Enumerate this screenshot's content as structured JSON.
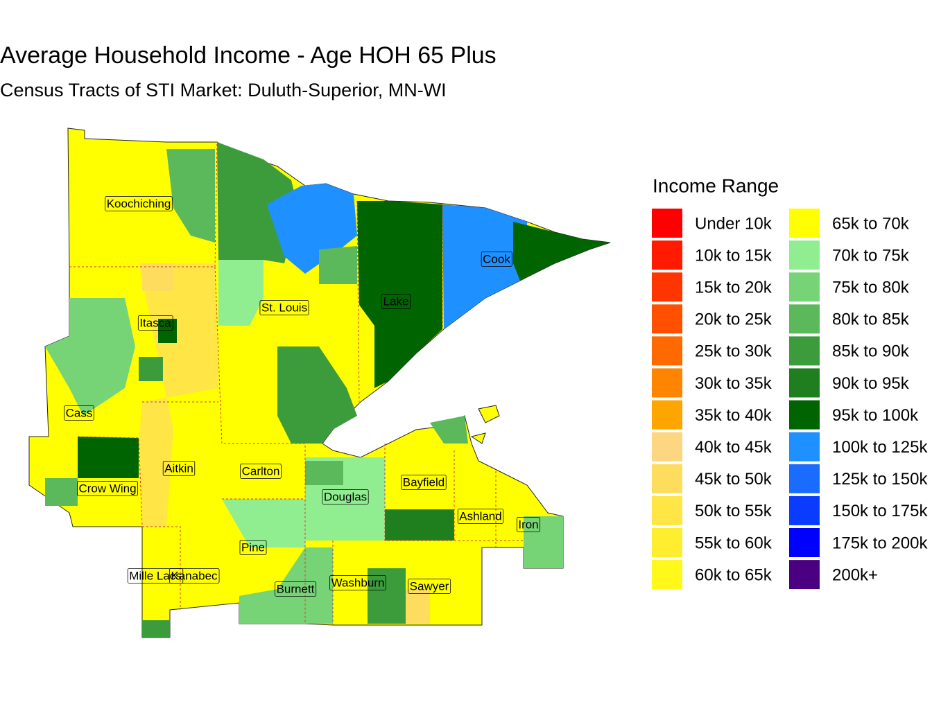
{
  "title": "Average Household Income - Age HOH 65 Plus",
  "subtitle": "Census Tracts of STI Market: Duluth-Superior, MN-WI",
  "legend": {
    "title": "Income Range",
    "items": [
      {
        "label": "Under 10k",
        "color": "#ff0000"
      },
      {
        "label": "10k to 15k",
        "color": "#ff1a00"
      },
      {
        "label": "15k to 20k",
        "color": "#ff3500"
      },
      {
        "label": "20k to 25k",
        "color": "#ff5000"
      },
      {
        "label": "25k to 30k",
        "color": "#ff6a00"
      },
      {
        "label": "30k to 35k",
        "color": "#ff8500"
      },
      {
        "label": "35k to 40k",
        "color": "#ffa500"
      },
      {
        "label": "40k to 45k",
        "color": "#fdd681"
      },
      {
        "label": "45k to 50k",
        "color": "#fedc5e"
      },
      {
        "label": "50k to 55k",
        "color": "#ffe545"
      },
      {
        "label": "55k to 60k",
        "color": "#ffee30"
      },
      {
        "label": "60k to 65k",
        "color": "#fff81a"
      },
      {
        "label": "65k to 70k",
        "color": "#ffff00"
      },
      {
        "label": "70k to 75k",
        "color": "#90ee90"
      },
      {
        "label": "75k to 80k",
        "color": "#76d476"
      },
      {
        "label": "80k to 85k",
        "color": "#5bb95b"
      },
      {
        "label": "85k to 90k",
        "color": "#3c9c3c"
      },
      {
        "label": "90k to 95k",
        "color": "#1f7f1f"
      },
      {
        "label": "95k to 100k",
        "color": "#006400"
      },
      {
        "label": "100k to 125k",
        "color": "#1e90ff"
      },
      {
        "label": "125k to 150k",
        "color": "#1a6cff"
      },
      {
        "label": "150k to 175k",
        "color": "#0a3cff"
      },
      {
        "label": "175k to 200k",
        "color": "#0000ff"
      },
      {
        "label": "200k+",
        "color": "#4b0082"
      }
    ]
  },
  "counties": [
    {
      "name": "Koochiching"
    },
    {
      "name": "Itasca"
    },
    {
      "name": "St. Louis"
    },
    {
      "name": "Lake"
    },
    {
      "name": "Cook"
    },
    {
      "name": "Cass"
    },
    {
      "name": "Aitkin"
    },
    {
      "name": "Carlton"
    },
    {
      "name": "Crow Wing"
    },
    {
      "name": "Douglas"
    },
    {
      "name": "Bayfield"
    },
    {
      "name": "Ashland"
    },
    {
      "name": "Iron"
    },
    {
      "name": "Pine"
    },
    {
      "name": "Mille Lacs"
    },
    {
      "name": "Kanabec"
    },
    {
      "name": "Burnett"
    },
    {
      "name": "Washburn"
    },
    {
      "name": "Sawyer"
    }
  ]
}
